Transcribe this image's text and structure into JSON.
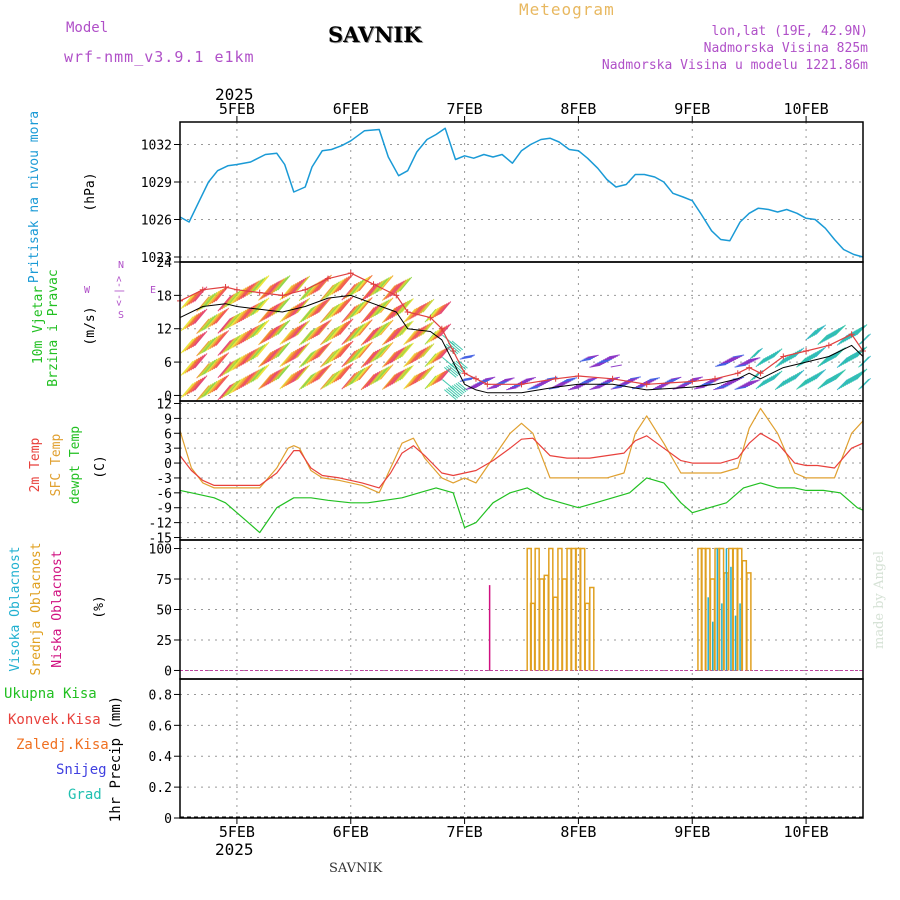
{
  "header": {
    "model_label": "Model",
    "model_name": "wrf-nmm_v3.9.1 e1km",
    "station": "SAVNIK",
    "product": "Meteogram",
    "lonlat": "lon,lat (19E, 42.9N)",
    "elevation": "Nadmorska Visina 825m",
    "model_elevation": "Nadmorska Visina u modelu 1221.86m",
    "footer_station": "SAVNIK",
    "credit": "made by Angel"
  },
  "time_axis": {
    "year": "2025",
    "ticks": [
      {
        "day": 0,
        "label": "5FEB"
      },
      {
        "day": 1,
        "label": "6FEB"
      },
      {
        "day": 2,
        "label": "7FEB"
      },
      {
        "day": 3,
        "label": "8FEB"
      },
      {
        "day": 4,
        "label": "9FEB"
      },
      {
        "day": 5,
        "label": "10FEB"
      }
    ],
    "xlim_days": [
      -0.5,
      5.5
    ]
  },
  "colors": {
    "pressure": "#1a9ad6",
    "temp2m": "#e8413c",
    "sfc_temp": "#e0a030",
    "dewpoint": "#22c022",
    "cloud_high": "#20b0d0",
    "cloud_mid": "#e0a020",
    "cloud_low": "#d01080",
    "precip_total": "#22c022",
    "precip_conv": "#e8413c",
    "precip_freezing": "#f07020",
    "precip_snow": "#4040e0",
    "precip_hail": "#20c0b0",
    "wind_speed_line": "#000000",
    "wind_gust": "#e04040"
  },
  "chart_data": [
    {
      "type": "line",
      "id": "pressure",
      "ylabel_title": "Pritisak na nivou mora",
      "ylabel_unit": "(hPa)",
      "yticks": [
        "1023",
        "1026",
        "1029",
        "1032"
      ],
      "ylim": [
        1022.6,
        1033.8
      ],
      "series": [
        {
          "x": [
            -0.5,
            -0.42,
            -0.33,
            -0.25,
            -0.17,
            -0.08,
            0,
            0.12,
            0.25,
            0.35,
            0.42,
            0.5,
            0.6,
            0.66,
            0.75,
            0.83,
            0.92,
            1,
            1.12,
            1.25,
            1.33,
            1.42,
            1.5,
            1.58,
            1.67,
            1.75,
            1.83,
            1.92,
            2,
            2.08,
            2.17,
            2.25,
            2.33,
            2.42,
            2.5,
            2.58,
            2.67,
            2.75,
            2.83,
            2.92,
            3,
            3.08,
            3.17,
            3.25,
            3.33,
            3.42,
            3.5,
            3.58,
            3.67,
            3.75,
            3.83,
            3.92,
            4,
            4.08,
            4.17,
            4.25,
            4.33,
            4.42,
            4.5,
            4.58,
            4.67,
            4.75,
            4.83,
            4.92,
            5,
            5.08,
            5.17,
            5.25,
            5.33,
            5.42,
            5.5
          ],
          "y": [
            1026.2,
            1025.8,
            1027.5,
            1029.0,
            1029.9,
            1030.3,
            1030.4,
            1030.6,
            1031.2,
            1031.3,
            1030.4,
            1028.2,
            1028.6,
            1030.2,
            1031.5,
            1031.6,
            1031.9,
            1032.3,
            1033.1,
            1033.2,
            1031.0,
            1029.5,
            1029.9,
            1031.4,
            1032.4,
            1032.8,
            1033.3,
            1030.8,
            1031.1,
            1030.9,
            1031.2,
            1031.0,
            1031.2,
            1030.5,
            1031.5,
            1032.0,
            1032.4,
            1032.5,
            1032.2,
            1031.6,
            1031.5,
            1030.9,
            1030.1,
            1029.2,
            1028.6,
            1028.8,
            1029.6,
            1029.6,
            1029.4,
            1029.0,
            1028.1,
            1027.8,
            1027.5,
            1026.4,
            1025.1,
            1024.4,
            1024.3,
            1025.8,
            1026.5,
            1026.9,
            1026.8,
            1026.6,
            1026.8,
            1026.5,
            1026.1,
            1026.0,
            1025.3,
            1024.4,
            1023.6,
            1023.2,
            1023.0
          ]
        }
      ]
    },
    {
      "type": "line",
      "id": "wind",
      "ylabel_title": "10m Vjetar",
      "ylabel_title2": "Brzina i Pravac",
      "ylabel_unit": "(m/s)",
      "compass": {
        "n": "N",
        "s": "S",
        "w": "W",
        "e": "E",
        "arrows": "<-|->"
      },
      "yticks": [
        "0",
        "6",
        "12",
        "18",
        "24"
      ],
      "ylim": [
        -1,
        24
      ],
      "series": [
        {
          "id": "speed",
          "x": [
            -0.5,
            -0.3,
            -0.1,
            0,
            0.2,
            0.4,
            0.6,
            0.8,
            1,
            1.2,
            1.4,
            1.5,
            1.7,
            1.8,
            1.9,
            2,
            2.1,
            2.2,
            2.5,
            2.8,
            3,
            3.3,
            3.6,
            4,
            4.2,
            4.4,
            4.5,
            4.6,
            4.8,
            5,
            5.2,
            5.4,
            5.5
          ],
          "y": [
            14,
            16,
            16.5,
            16,
            15.5,
            15,
            16,
            17.5,
            18,
            16.5,
            15,
            12,
            11.5,
            10,
            6,
            2,
            1,
            0.5,
            0.5,
            1.5,
            2,
            2,
            1,
            1.5,
            2,
            3,
            4,
            3,
            5,
            6,
            7,
            9,
            7
          ]
        },
        {
          "id": "gust",
          "x": [
            -0.5,
            -0.3,
            -0.1,
            0,
            0.2,
            0.4,
            0.6,
            0.8,
            1,
            1.2,
            1.4,
            1.5,
            1.7,
            1.8,
            1.9,
            2,
            2.1,
            2.2,
            2.5,
            2.8,
            3,
            3.3,
            3.6,
            4,
            4.2,
            4.4,
            4.5,
            4.6,
            4.8,
            5,
            5.2,
            5.4,
            5.5
          ],
          "y": [
            17,
            19,
            19.5,
            19,
            18.5,
            18,
            19,
            21,
            22,
            20,
            18,
            15,
            14,
            12,
            8,
            4,
            3,
            2,
            2,
            3,
            3.5,
            3,
            2,
            2.5,
            3,
            4,
            5,
            4,
            7,
            8,
            9,
            11,
            8
          ]
        }
      ]
    },
    {
      "type": "line",
      "id": "temperature",
      "ylabel_title": "2m Temp",
      "ylabel_title2": "SFC Temp",
      "ylabel_title3": "dewpt Temp",
      "ylabel_unit": "(C)",
      "yticks": [
        "-15",
        "-12",
        "-9",
        "-6",
        "-3",
        "0",
        "3",
        "6",
        "9",
        "12"
      ],
      "ylim": [
        -15.5,
        12.5
      ],
      "series": [
        {
          "id": "t2m",
          "x": [
            -0.5,
            -0.4,
            -0.3,
            -0.2,
            -0.1,
            0,
            0.1,
            0.2,
            0.35,
            0.45,
            0.5,
            0.55,
            0.65,
            0.75,
            0.9,
            1,
            1.1,
            1.25,
            1.35,
            1.45,
            1.55,
            1.65,
            1.8,
            1.9,
            2,
            2.1,
            2.25,
            2.4,
            2.5,
            2.6,
            2.75,
            2.9,
            3,
            3.1,
            3.25,
            3.4,
            3.5,
            3.6,
            3.75,
            3.9,
            4,
            4.1,
            4.25,
            4.4,
            4.5,
            4.6,
            4.75,
            4.9,
            5,
            5.1,
            5.25,
            5.4,
            5.5
          ],
          "y": [
            1.5,
            -1.5,
            -3.5,
            -4.5,
            -4.5,
            -4.5,
            -4.5,
            -4.5,
            -2,
            1,
            2.5,
            2.5,
            -1,
            -2.5,
            -3,
            -3.5,
            -4,
            -5,
            -2,
            2,
            3.5,
            1.5,
            -2,
            -2.5,
            -2,
            -1.5,
            0.5,
            3,
            4.8,
            5,
            1.5,
            1,
            1,
            1,
            1.5,
            2,
            4.5,
            5.5,
            3,
            0.5,
            0,
            0,
            0,
            1,
            4,
            6,
            4,
            0,
            -0.5,
            -0.5,
            -1,
            3,
            4
          ]
        },
        {
          "id": "sfc",
          "x": [
            -0.5,
            -0.4,
            -0.3,
            -0.2,
            -0.1,
            0,
            0.1,
            0.2,
            0.35,
            0.45,
            0.5,
            0.55,
            0.65,
            0.75,
            0.9,
            1,
            1.1,
            1.25,
            1.35,
            1.45,
            1.55,
            1.65,
            1.8,
            1.9,
            2,
            2.1,
            2.25,
            2.4,
            2.5,
            2.6,
            2.75,
            2.9,
            3,
            3.1,
            3.25,
            3.4,
            3.5,
            3.6,
            3.75,
            3.9,
            4,
            4.1,
            4.25,
            4.4,
            4.5,
            4.6,
            4.75,
            4.9,
            5,
            5.1,
            5.25,
            5.4,
            5.5
          ],
          "y": [
            6.5,
            -1,
            -4,
            -5,
            -5,
            -5,
            -5,
            -5,
            -1,
            3,
            3.5,
            3,
            -1.5,
            -3,
            -3.5,
            -4,
            -4.5,
            -6,
            -1,
            4,
            5,
            1,
            -3,
            -4,
            -3,
            -4,
            1,
            6,
            8,
            6,
            -3,
            -3,
            -3,
            -3,
            -3,
            -2,
            6,
            9.5,
            4,
            -2,
            -2,
            -2,
            -2,
            -1,
            7,
            11,
            6,
            -2,
            -3,
            -3,
            -3,
            6,
            8.5
          ]
        },
        {
          "id": "dewpt",
          "x": [
            -0.5,
            -0.4,
            -0.3,
            -0.2,
            -0.1,
            0,
            0.1,
            0.2,
            0.35,
            0.5,
            0.65,
            0.8,
            1,
            1.15,
            1.3,
            1.45,
            1.6,
            1.75,
            1.9,
            2,
            2.1,
            2.25,
            2.4,
            2.55,
            2.7,
            2.85,
            3,
            3.15,
            3.3,
            3.45,
            3.6,
            3.75,
            3.9,
            4,
            4.15,
            4.3,
            4.45,
            4.6,
            4.75,
            4.9,
            5,
            5.15,
            5.3,
            5.45,
            5.5
          ],
          "y": [
            -5.5,
            -6,
            -6.5,
            -7,
            -8,
            -10,
            -12,
            -14,
            -9,
            -7,
            -7,
            -7.5,
            -8,
            -8,
            -7.5,
            -7,
            -6,
            -5,
            -6,
            -13,
            -12,
            -8,
            -6,
            -5,
            -7,
            -8,
            -9,
            -8,
            -7,
            -6,
            -3,
            -4,
            -8,
            -10,
            -9,
            -8,
            -5,
            -4,
            -5,
            -5,
            -5.5,
            -5.5,
            -6,
            -9,
            -9.5
          ]
        }
      ]
    },
    {
      "type": "bar",
      "id": "cloud",
      "ylabel_title": "Visoka Oblacnost",
      "ylabel_title2": "Srednja Oblacnost",
      "ylabel_title3": "Niska Oblacnost",
      "ylabel_unit": "(%)",
      "yticks": [
        "0",
        "25",
        "50",
        "75",
        "100"
      ],
      "ylim": [
        -7,
        107
      ],
      "series": [
        {
          "id": "low",
          "x": [
            2.22
          ],
          "y": [
            70
          ]
        },
        {
          "id": "mid",
          "x": [
            2.55,
            2.58,
            2.62,
            2.66,
            2.7,
            2.74,
            2.78,
            2.82,
            2.86,
            2.9,
            2.94,
            2.98,
            3.02,
            3.06,
            3.1,
            4.05,
            4.08,
            4.12,
            4.16,
            4.2,
            4.24,
            4.28,
            4.32,
            4.36,
            4.4,
            4.44,
            4.48
          ],
          "y": [
            100,
            55,
            100,
            75,
            78,
            100,
            60,
            100,
            75,
            100,
            100,
            100,
            100,
            55,
            68,
            100,
            100,
            100,
            75,
            100,
            100,
            80,
            100,
            100,
            100,
            90,
            80
          ]
        },
        {
          "id": "high",
          "x": [
            4.14,
            4.18,
            4.22,
            4.26,
            4.3,
            4.34,
            4.38,
            4.42
          ],
          "y": [
            60,
            40,
            100,
            55,
            100,
            85,
            45,
            55
          ]
        }
      ]
    },
    {
      "type": "bar",
      "id": "precip",
      "legend": [
        "Ukupna Kisa",
        "Konvek.Kisa",
        "Zaledj.Kisa",
        "Snijeg",
        "Grad"
      ],
      "ylabel_unit": "1hr Precip (mm)",
      "yticks": [
        "0",
        "0.2",
        "0.4",
        "0.6",
        "0.8"
      ],
      "ylim": [
        0,
        0.9
      ],
      "series": []
    }
  ]
}
